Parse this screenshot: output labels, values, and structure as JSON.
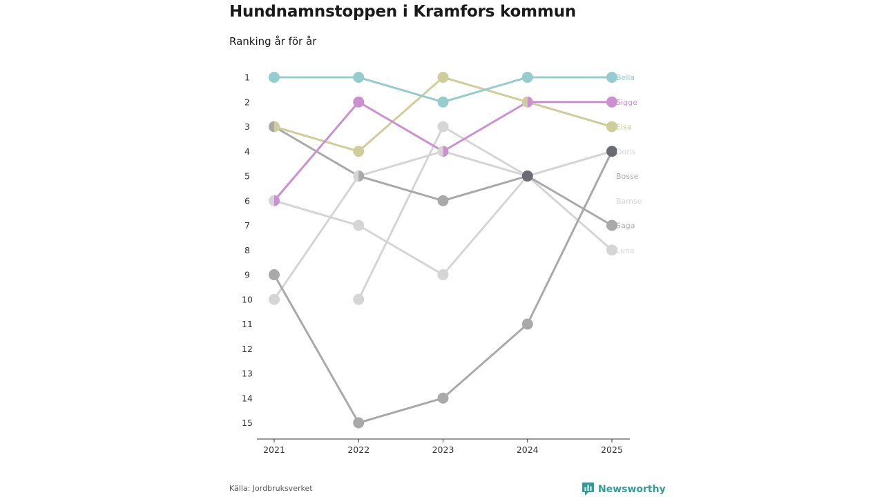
{
  "title": "Hundnamnstoppen i Kramfors kommun",
  "subtitle": "Ranking år för år",
  "source": "Källa: Jordbruksverket",
  "brand": "Newsworthy",
  "chart_data": {
    "type": "line",
    "chart_kind": "bump",
    "categories": [
      "2021",
      "2022",
      "2023",
      "2024",
      "2025"
    ],
    "rank_ticks": [
      1,
      2,
      3,
      4,
      5,
      6,
      7,
      8,
      9,
      10,
      11,
      12,
      13,
      14,
      15
    ],
    "ylim": [
      1,
      15
    ],
    "y_inverted": true,
    "series": [
      {
        "name": "Bamse",
        "color": "#d5d5d5",
        "values": [
          6,
          7,
          9,
          5,
          null
        ]
      },
      {
        "name": "Luna",
        "color": "#d5d5d5",
        "values": [
          null,
          10,
          3,
          5,
          8
        ]
      },
      {
        "name": "Doris",
        "color": "#d5d5d5",
        "values": [
          10,
          5,
          4,
          5,
          4
        ]
      },
      {
        "name": "Saga",
        "color": "#a9a9a9",
        "values": [
          3,
          5,
          6,
          5,
          7
        ]
      },
      {
        "name": "Bosse",
        "color": "#a9a9a9",
        "values": [
          9,
          15,
          14,
          11,
          4
        ]
      },
      {
        "name": "Elsa",
        "color": "#cfcd9a",
        "values": [
          3,
          4,
          1,
          2,
          3
        ]
      },
      {
        "name": "Sigge",
        "color": "#cc8fd0",
        "values": [
          6,
          2,
          4,
          2,
          2
        ]
      },
      {
        "name": "Bella",
        "color": "#95cdcd",
        "values": [
          1,
          1,
          2,
          1,
          1
        ]
      }
    ],
    "end_labels": [
      {
        "name": "Bella",
        "rank": 1,
        "color": "#95cdcd"
      },
      {
        "name": "Sigge",
        "rank": 2,
        "color": "#cc8fd0"
      },
      {
        "name": "Elsa",
        "rank": 3,
        "color": "#cfcd9a"
      },
      {
        "name": "Doris",
        "rank": 4,
        "color": "#d5d5d5"
      },
      {
        "name": "Bosse",
        "rank": 5,
        "color": "#a9a9a9"
      },
      {
        "name": "Bamse",
        "rank": 6,
        "color": "#d5d5d5"
      },
      {
        "name": "Saga",
        "rank": 7,
        "color": "#a9a9a9"
      },
      {
        "name": "Luna",
        "rank": 8,
        "color": "#d5d5d5"
      }
    ],
    "highlight_points": [
      {
        "year_index": 3,
        "rank": 5,
        "color": "#6b6b73"
      },
      {
        "year_index": 4,
        "rank": 4,
        "color": "#6b6b73"
      }
    ]
  }
}
